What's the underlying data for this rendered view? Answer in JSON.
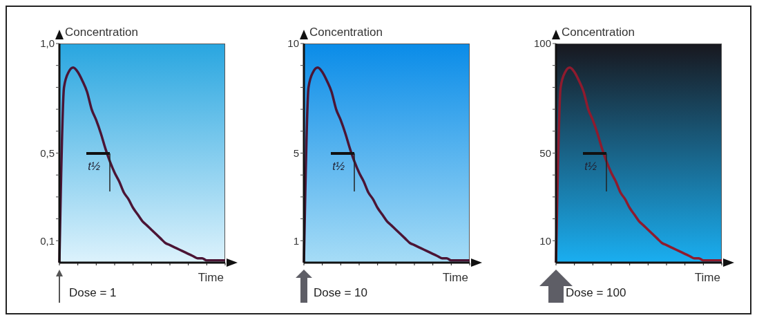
{
  "chart_data": [
    {
      "type": "line",
      "ylabel": "Concentration",
      "xlabel": "Time",
      "categories": [
        null,
        null,
        null,
        null,
        null,
        null,
        null,
        null,
        null,
        null,
        null,
        null,
        null,
        null,
        null,
        null,
        null,
        null,
        null,
        null,
        null,
        null,
        null,
        null,
        null,
        null,
        null,
        null,
        null,
        null,
        null,
        null,
        null,
        null,
        null,
        null,
        null
      ],
      "series": [
        {
          "color": "#4b1535",
          "values": [
            0,
            0.8,
            0.87,
            0.89,
            0.87,
            0.83,
            0.78,
            0.7,
            0.65,
            0.59,
            0.52,
            0.46,
            0.41,
            0.37,
            0.32,
            0.29,
            0.25,
            0.22,
            0.19,
            0.17,
            0.15,
            0.13,
            0.11,
            0.09,
            0.08,
            0.07,
            0.06,
            0.05,
            0.04,
            0.03,
            0.02,
            0.02,
            0.01,
            0.01,
            0.01,
            0.01,
            0.01
          ]
        }
      ],
      "ylim": [
        0,
        1
      ],
      "yticks": [
        {
          "value": 0.1,
          "label": "0,1"
        },
        {
          "value": 0.2,
          "label": null
        },
        {
          "value": 0.3,
          "label": null
        },
        {
          "value": 0.4,
          "label": null
        },
        {
          "value": 0.5,
          "label": "0,5"
        },
        {
          "value": 0.6,
          "label": null
        },
        {
          "value": 0.7,
          "label": null
        },
        {
          "value": 0.8,
          "label": null
        },
        {
          "value": 0.9,
          "label": null
        },
        {
          "value": 1,
          "label": "1,0"
        }
      ],
      "annotations": [
        "Dose = 1",
        "t½"
      ]
    },
    {
      "type": "line",
      "ylabel": "Concentration",
      "xlabel": "Time",
      "categories": [
        null,
        null,
        null,
        null,
        null,
        null,
        null,
        null,
        null,
        null,
        null,
        null,
        null,
        null,
        null,
        null,
        null,
        null,
        null,
        null,
        null,
        null,
        null,
        null,
        null,
        null,
        null,
        null,
        null,
        null,
        null,
        null,
        null,
        null,
        null,
        null,
        null
      ],
      "series": [
        {
          "color": "#4b1535",
          "values": [
            0,
            8,
            8.7,
            8.9,
            8.7,
            8.3,
            7.8,
            7,
            6.5,
            5.9,
            5.2,
            4.6,
            4.1,
            3.7,
            3.2,
            2.9,
            2.5,
            2.2,
            1.9,
            1.7,
            1.5,
            1.3,
            1.1,
            0.9,
            0.8,
            0.7,
            0.6,
            0.5,
            0.4,
            0.3,
            0.2,
            0.2,
            0.1,
            0.1,
            0.1,
            0.1,
            0.1
          ]
        }
      ],
      "ylim": [
        0,
        10
      ],
      "yticks": [
        1,
        {
          "value": 2,
          "label": null
        },
        {
          "value": 3,
          "label": null
        },
        {
          "value": 4,
          "label": null
        },
        5,
        {
          "value": 6,
          "label": null
        },
        {
          "value": 7,
          "label": null
        },
        {
          "value": 8,
          "label": null
        },
        {
          "value": 9,
          "label": null
        },
        10
      ],
      "annotations": [
        "Dose = 10",
        "t½"
      ]
    },
    {
      "type": "line",
      "ylabel": "Concentration",
      "xlabel": "Time",
      "categories": [
        null,
        null,
        null,
        null,
        null,
        null,
        null,
        null,
        null,
        null,
        null,
        null,
        null,
        null,
        null,
        null,
        null,
        null,
        null,
        null,
        null,
        null,
        null,
        null,
        null,
        null,
        null,
        null,
        null,
        null,
        null,
        null,
        null,
        null,
        null,
        null,
        null
      ],
      "series": [
        {
          "color": "#8e1b2e",
          "values": [
            0,
            80,
            87,
            89,
            87,
            83,
            78,
            70,
            65,
            59,
            52,
            46,
            41,
            37,
            32,
            29,
            25,
            22,
            19,
            17,
            15,
            13,
            11,
            9,
            8,
            7,
            6,
            5,
            4,
            3,
            2,
            2,
            1,
            1,
            1,
            1,
            1
          ]
        }
      ],
      "ylim": [
        0,
        100
      ],
      "yticks": [
        10,
        {
          "value": 20,
          "label": null
        },
        {
          "value": 30,
          "label": null
        },
        {
          "value": 40,
          "label": null
        },
        50,
        {
          "value": 60,
          "label": null
        },
        {
          "value": 70,
          "label": null
        },
        {
          "value": 80,
          "label": null
        },
        {
          "value": 90,
          "label": null
        },
        100
      ],
      "annotations": [
        "Dose = 100",
        "t½"
      ]
    }
  ]
}
